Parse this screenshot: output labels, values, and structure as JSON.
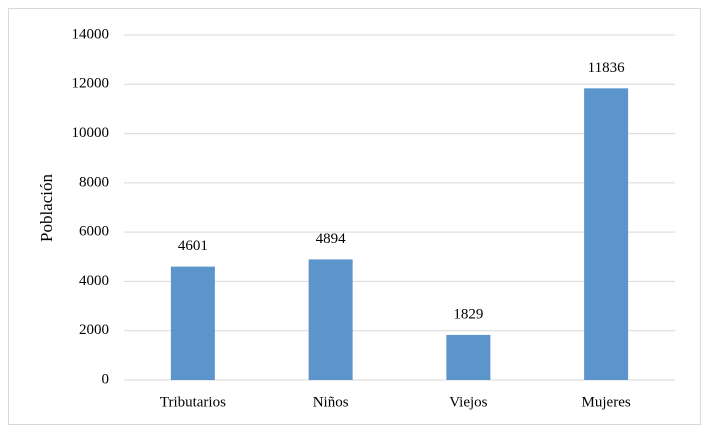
{
  "chart_data": {
    "type": "bar",
    "y_label": "Población",
    "categories": [
      "Tributarios",
      "Niños",
      "Viejos",
      "Mujeres"
    ],
    "values": [
      4601,
      4894,
      1829,
      11836
    ],
    "color": "#5b95cc",
    "ylim": [
      0,
      14000
    ],
    "yticks": [
      0,
      2000,
      4000,
      6000,
      8000,
      10000,
      12000,
      14000
    ],
    "grid": true
  }
}
